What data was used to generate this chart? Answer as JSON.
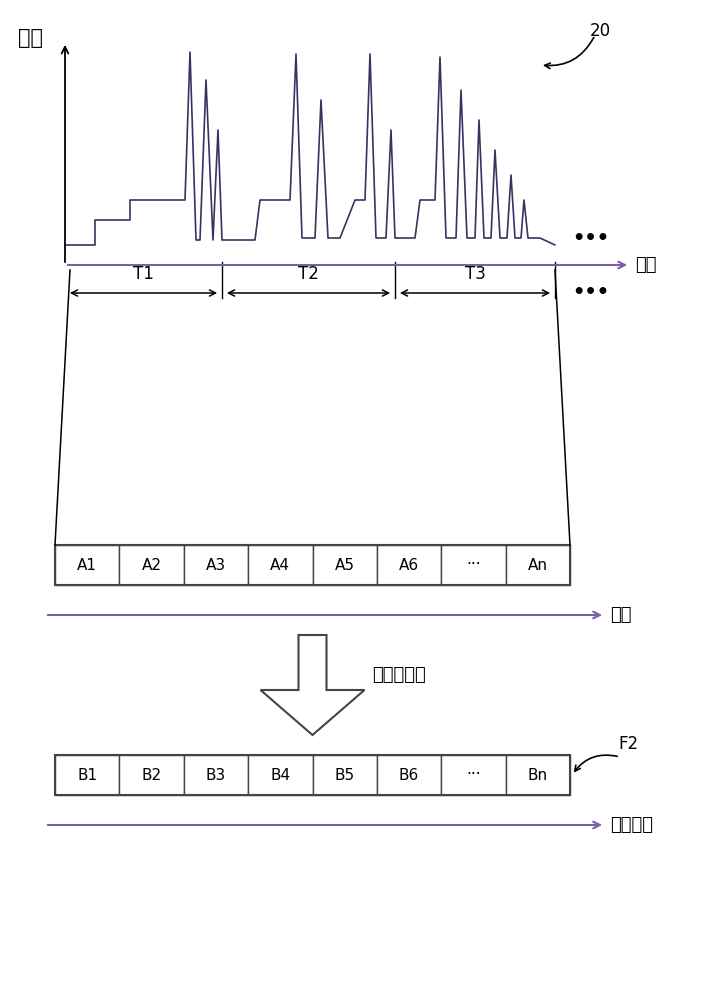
{
  "label_amplitude": "振幅",
  "label_time": "时间",
  "label_sound_freq": "声音频率",
  "label_fourier": "傅立叶转换",
  "label_20": "20",
  "label_F2": "F2",
  "label_dots": "•••",
  "cells_A": [
    "A1",
    "A2",
    "A3",
    "A4",
    "A5",
    "A6",
    "···",
    "An"
  ],
  "cells_B": [
    "B1",
    "B2",
    "B3",
    "B4",
    "B5",
    "B6",
    "···",
    "Bn"
  ],
  "bg_color": "#ffffff",
  "line_color": "#000000",
  "signal_color": "#3d3060",
  "axis_color": "#7b5ea7",
  "box_line_color": "#444444",
  "waveform_color": "#2d2060"
}
